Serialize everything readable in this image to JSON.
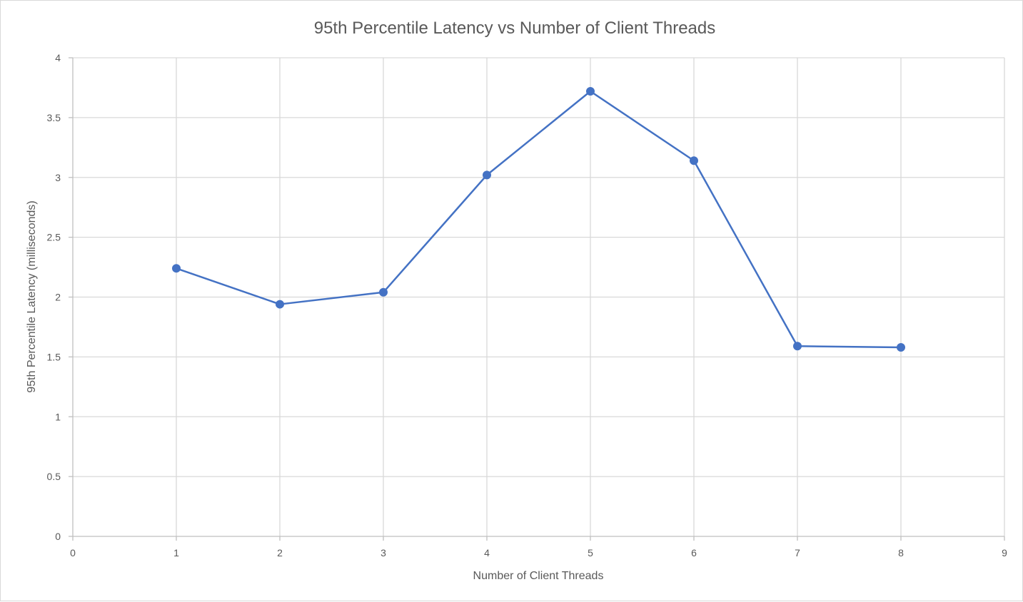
{
  "chart_data": {
    "type": "scatter",
    "title": "95th Percentile Latency vs Number of Client Threads",
    "xlabel": "Number of Client Threads",
    "ylabel": "95th Percentile Latency (milliseconds)",
    "xlim": [
      0,
      9
    ],
    "ylim": [
      0,
      4
    ],
    "x_ticks": [
      "0",
      "1",
      "2",
      "3",
      "4",
      "5",
      "6",
      "7",
      "8",
      "9"
    ],
    "y_ticks": [
      "0",
      "0.5",
      "1",
      "1.5",
      "2",
      "2.5",
      "3",
      "3.5",
      "4"
    ],
    "grid": true,
    "legend": "none",
    "markers_with_lines": true,
    "series": [
      {
        "color": "#4472c4",
        "x": [
          1,
          2,
          3,
          4,
          5,
          6,
          7,
          8
        ],
        "values": [
          2.24,
          1.94,
          2.04,
          3.02,
          3.72,
          3.14,
          1.59,
          1.58
        ]
      }
    ]
  }
}
